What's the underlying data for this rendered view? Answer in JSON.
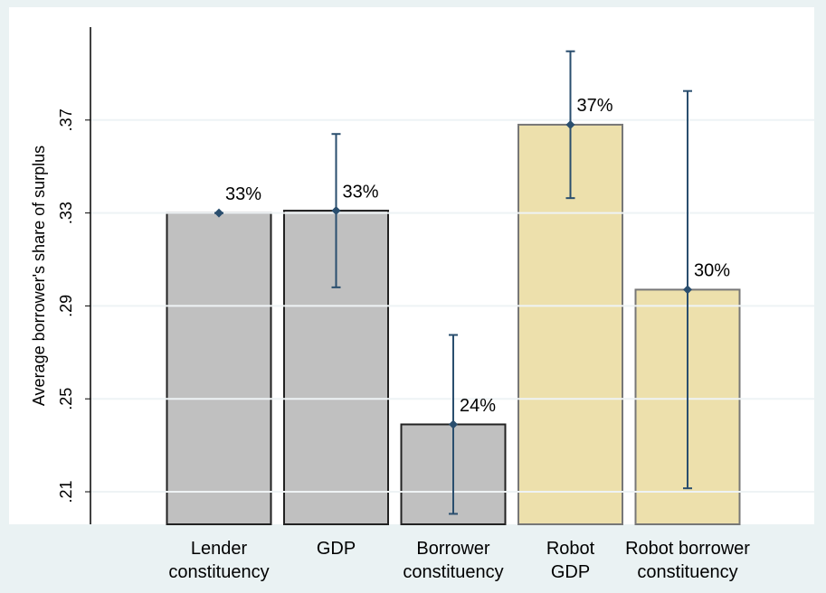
{
  "chart_data": {
    "type": "bar",
    "y_label": "Average borrower's share of surplus",
    "categories": [
      "Lender\nconstituency",
      "GDP",
      "Borrower\nconstituency",
      "Robot\nGDP",
      "Robot borrower\nconstituency"
    ],
    "values": [
      0.33,
      0.331,
      0.239,
      0.368,
      0.297
    ],
    "errors": [
      0,
      0.033,
      0.0385,
      0.0316,
      0.0855
    ],
    "value_labels": [
      "33%",
      "33%",
      "24%",
      "37%",
      "30%"
    ],
    "colors": [
      "#c0c0c0",
      "#c0c0c0",
      "#c0c0c0",
      "#ede0ac",
      "#ede0ac"
    ],
    "error_color": "#2a4e6e",
    "ylim": [
      0.196,
      0.41
    ],
    "yticks": [
      {
        "value": 0.21,
        "label": ".21"
      },
      {
        "value": 0.25,
        "label": ".25"
      },
      {
        "value": 0.29,
        "label": ".29"
      },
      {
        "value": 0.33,
        "label": ".33"
      },
      {
        "value": 0.37,
        "label": ".37"
      }
    ],
    "grid": true
  }
}
